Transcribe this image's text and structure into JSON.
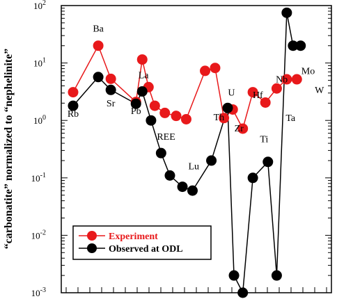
{
  "chart_data": {
    "type": "line",
    "ylabel": "“carbonatite” normalized to “nephelinite”",
    "yscale": "log",
    "ylim": [
      0.001,
      100
    ],
    "yticks": [
      {
        "value": 0.001,
        "base": "10",
        "exp": "-3"
      },
      {
        "value": 0.01,
        "base": "10",
        "exp": "-2"
      },
      {
        "value": 0.1,
        "base": "10",
        "exp": "-1"
      },
      {
        "value": 1,
        "base": "10",
        "exp": "0"
      },
      {
        "value": 10,
        "base": "10",
        "exp": "1"
      },
      {
        "value": 100,
        "base": "10",
        "exp": "2"
      }
    ],
    "x_slots": 23,
    "element_labels": [
      {
        "text": "Rb",
        "x": 0,
        "y": 1.15
      },
      {
        "text": "Ba",
        "x": 2,
        "y": 35
      },
      {
        "text": "Sr",
        "x": 3,
        "y": 1.75
      },
      {
        "text": "Pb",
        "x": 5,
        "y": 1.3
      },
      {
        "text": "La",
        "x": 5.6,
        "y": 5.4
      },
      {
        "text": "REE",
        "x": 7.4,
        "y": 0.46
      },
      {
        "text": "Lu",
        "x": 9.6,
        "y": 0.14
      },
      {
        "text": "Th",
        "x": 11.6,
        "y": 1.0
      },
      {
        "text": "U",
        "x": 12.6,
        "y": 2.7
      },
      {
        "text": "Zr",
        "x": 13.2,
        "y": 0.64
      },
      {
        "text": "Hf",
        "x": 14.7,
        "y": 2.45
      },
      {
        "text": "Ti",
        "x": 15.2,
        "y": 0.42
      },
      {
        "text": "Nb",
        "x": 16.6,
        "y": 4.6
      },
      {
        "text": "Ta",
        "x": 17.3,
        "y": 0.98
      },
      {
        "text": "Mo",
        "x": 18.7,
        "y": 6.4
      },
      {
        "text": "W",
        "x": 19.6,
        "y": 3.0
      }
    ],
    "legend": {
      "position": "bottom-left"
    },
    "series": [
      {
        "name": "Experiment",
        "color": "#e8191b",
        "x": [
          0,
          2,
          3,
          5,
          5.5,
          6,
          6.5,
          7.3,
          8.2,
          9,
          10.5,
          11.3,
          12,
          12.7,
          13.5,
          14.3,
          15.3,
          16.2,
          17,
          17.8
        ],
        "values": [
          3.1,
          20,
          5.3,
          2.1,
          11.5,
          3.8,
          1.8,
          1.35,
          1.2,
          1.05,
          7.3,
          8.2,
          1.1,
          1.55,
          0.72,
          3.1,
          2.05,
          3.6,
          5.2,
          5.2
        ]
      },
      {
        "name": "Observed at ODL",
        "color": "#000000",
        "x": [
          0,
          2,
          3,
          5,
          5.5,
          6.2,
          7,
          7.7,
          8.7,
          9.5,
          11,
          12.3,
          12.8,
          13.5,
          14.3,
          15.5,
          16.2,
          17,
          17.5,
          18.1
        ],
        "values": [
          1.8,
          5.7,
          3.4,
          1.95,
          3.2,
          1.0,
          0.27,
          0.11,
          0.07,
          0.06,
          0.2,
          1.65,
          0.002,
          0.001,
          0.1,
          0.19,
          0.002,
          75,
          20,
          20
        ]
      }
    ]
  }
}
